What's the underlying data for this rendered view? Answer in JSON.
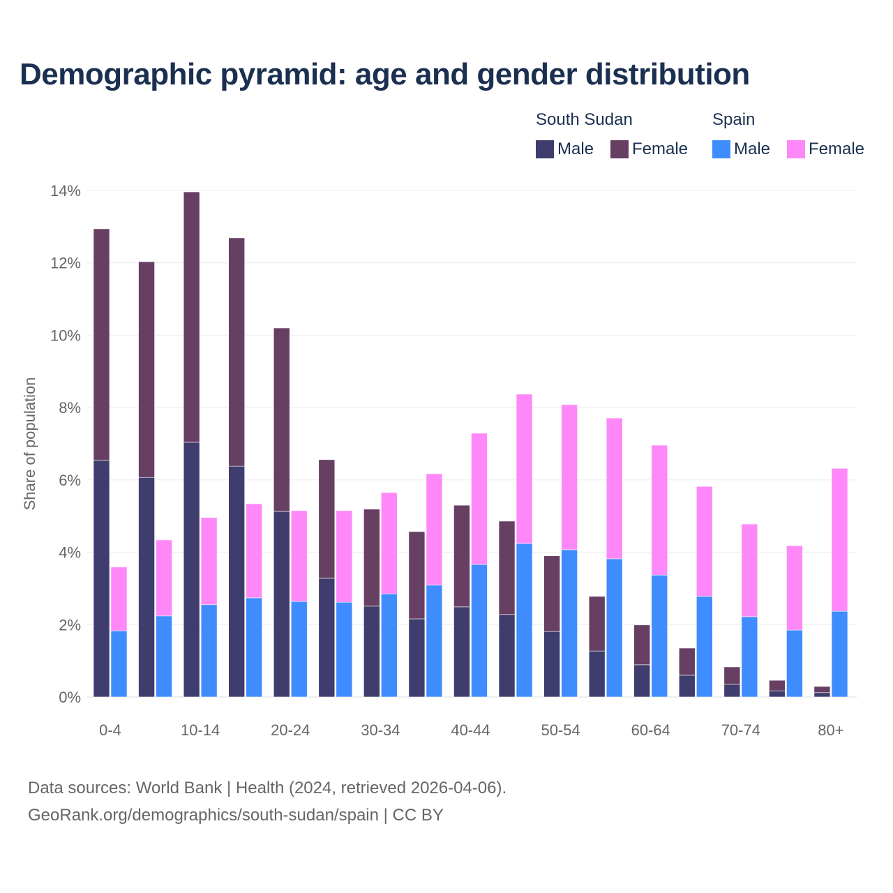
{
  "chart_data": {
    "type": "bar",
    "stacked": true,
    "title": "Demographic pyramid: age and gender distribution",
    "xlabel": "",
    "ylabel": "Share of population",
    "ylim": [
      0,
      14
    ],
    "yticks": [
      "0%",
      "2%",
      "4%",
      "6%",
      "8%",
      "10%",
      "12%",
      "14%"
    ],
    "ytick_values": [
      0,
      2,
      4,
      6,
      8,
      10,
      12,
      14
    ],
    "grid": true,
    "categories": [
      "0-4",
      "5-9",
      "10-14",
      "15-19",
      "20-24",
      "25-29",
      "30-34",
      "35-39",
      "40-44",
      "45-49",
      "50-54",
      "55-59",
      "60-64",
      "65-69",
      "70-74",
      "75-79",
      "80+"
    ],
    "xtick_labels_shown": [
      "0-4",
      "10-14",
      "20-24",
      "30-34",
      "40-44",
      "50-54",
      "60-64",
      "70-74",
      "80+"
    ],
    "legend_position": "top-right",
    "groups": [
      {
        "name": "South Sudan",
        "series": [
          {
            "name": "Male",
            "color": "#3f3d6e",
            "values": [
              6.54,
              6.07,
              7.04,
              6.38,
              5.13,
              3.28,
              2.51,
              2.16,
              2.49,
              2.28,
              1.81,
              1.27,
              0.89,
              0.6,
              0.35,
              0.17,
              0.12
            ]
          },
          {
            "name": "Female",
            "color": "#663f63",
            "values": [
              6.4,
              5.96,
              6.92,
              6.31,
              5.07,
              3.28,
              2.68,
              2.41,
              2.81,
              2.58,
              2.09,
              1.51,
              1.1,
              0.75,
              0.48,
              0.29,
              0.17
            ]
          }
        ]
      },
      {
        "name": "Spain",
        "series": [
          {
            "name": "Male",
            "color": "#3f8cff",
            "values": [
              1.83,
              2.24,
              2.55,
              2.74,
              2.64,
              2.62,
              2.85,
              3.09,
              3.66,
              4.24,
              4.07,
              3.82,
              3.37,
              2.78,
              2.22,
              1.85,
              2.37
            ]
          },
          {
            "name": "Female",
            "color": "#ff88f8",
            "values": [
              1.76,
              2.1,
              2.41,
              2.6,
              2.51,
              2.53,
              2.8,
              3.08,
              3.63,
              4.13,
              4.01,
              3.89,
              3.59,
              3.04,
              2.56,
              2.33,
              3.95
            ]
          }
        ]
      }
    ]
  },
  "footer": {
    "line1": "Data sources: World Bank | Health (2024, retrieved 2026-04-06).",
    "line2": "GeoRank.org/demographics/south-sudan/spain | CC BY"
  }
}
